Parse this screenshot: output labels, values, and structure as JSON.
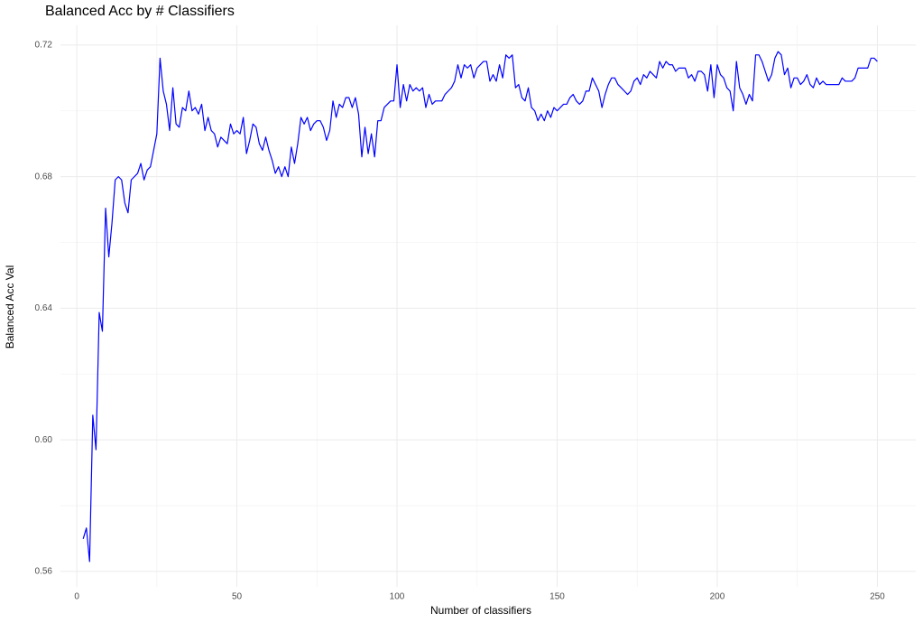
{
  "chart_data": {
    "type": "line",
    "title": "Balanced Acc by # Classifiers",
    "x_label": "Number of classifiers",
    "y_label": "Balanced Acc Val",
    "color": "#0000ff",
    "grid": true,
    "x": [
      2,
      3,
      4,
      5,
      6,
      7,
      8,
      9,
      10,
      11,
      12,
      13,
      14,
      15,
      16,
      17,
      18,
      19,
      20,
      21,
      22,
      23,
      24,
      25,
      26,
      27,
      28,
      29,
      30,
      31,
      32,
      33,
      34,
      35,
      36,
      37,
      38,
      39,
      40,
      41,
      42,
      43,
      44,
      45,
      46,
      47,
      48,
      49,
      50,
      51,
      52,
      53,
      54,
      55,
      56,
      57,
      58,
      59,
      60,
      61,
      62,
      63,
      64,
      65,
      66,
      67,
      68,
      69,
      70,
      71,
      72,
      73,
      74,
      75,
      76,
      77,
      78,
      79,
      80,
      81,
      82,
      83,
      84,
      85,
      86,
      87,
      88,
      89,
      90,
      91,
      92,
      93,
      94,
      95,
      96,
      97,
      98,
      99,
      100,
      101,
      102,
      103,
      104,
      105,
      106,
      107,
      108,
      109,
      110,
      111,
      112,
      113,
      114,
      115,
      116,
      117,
      118,
      119,
      120,
      121,
      122,
      123,
      124,
      125,
      126,
      127,
      128,
      129,
      130,
      131,
      132,
      133,
      134,
      135,
      136,
      137,
      138,
      139,
      140,
      141,
      142,
      143,
      144,
      145,
      146,
      147,
      148,
      149,
      150,
      151,
      152,
      153,
      154,
      155,
      156,
      157,
      158,
      159,
      160,
      161,
      162,
      163,
      164,
      165,
      166,
      167,
      168,
      169,
      170,
      171,
      172,
      173,
      174,
      175,
      176,
      177,
      178,
      179,
      180,
      181,
      182,
      183,
      184,
      185,
      186,
      187,
      188,
      189,
      190,
      191,
      192,
      193,
      194,
      195,
      196,
      197,
      198,
      199,
      200,
      201,
      202,
      203,
      204,
      205,
      206,
      207,
      208,
      209,
      210,
      211,
      212,
      213,
      214,
      215,
      216,
      217,
      218,
      219,
      220,
      221,
      222,
      223,
      224,
      225,
      226,
      227,
      228,
      229,
      230,
      231,
      232,
      233,
      234,
      235,
      236,
      237,
      238,
      239,
      240,
      241,
      242,
      243,
      244,
      245,
      246,
      247,
      248,
      249,
      250
    ],
    "values": [
      0.5699,
      0.5732,
      0.563,
      0.6075,
      0.597,
      0.6387,
      0.633,
      0.6704,
      0.6556,
      0.666,
      0.679,
      0.68,
      0.679,
      0.672,
      0.669,
      0.679,
      0.68,
      0.681,
      0.684,
      0.679,
      0.682,
      0.683,
      0.688,
      0.693,
      0.716,
      0.706,
      0.702,
      0.694,
      0.707,
      0.696,
      0.695,
      0.701,
      0.7,
      0.706,
      0.7,
      0.701,
      0.699,
      0.702,
      0.694,
      0.698,
      0.694,
      0.693,
      0.689,
      0.692,
      0.691,
      0.69,
      0.696,
      0.693,
      0.694,
      0.693,
      0.698,
      0.687,
      0.691,
      0.696,
      0.695,
      0.69,
      0.688,
      0.692,
      0.688,
      0.685,
      0.681,
      0.683,
      0.68,
      0.683,
      0.68,
      0.689,
      0.684,
      0.69,
      0.698,
      0.696,
      0.698,
      0.694,
      0.696,
      0.697,
      0.697,
      0.695,
      0.691,
      0.694,
      0.703,
      0.698,
      0.702,
      0.701,
      0.704,
      0.704,
      0.701,
      0.704,
      0.699,
      0.686,
      0.695,
      0.687,
      0.693,
      0.686,
      0.697,
      0.697,
      0.701,
      0.702,
      0.703,
      0.703,
      0.714,
      0.701,
      0.708,
      0.703,
      0.708,
      0.706,
      0.707,
      0.706,
      0.707,
      0.701,
      0.705,
      0.702,
      0.703,
      0.703,
      0.703,
      0.705,
      0.706,
      0.707,
      0.709,
      0.714,
      0.71,
      0.714,
      0.713,
      0.714,
      0.71,
      0.713,
      0.714,
      0.715,
      0.715,
      0.709,
      0.711,
      0.709,
      0.714,
      0.71,
      0.717,
      0.716,
      0.717,
      0.707,
      0.708,
      0.704,
      0.703,
      0.707,
      0.701,
      0.7,
      0.697,
      0.699,
      0.697,
      0.7,
      0.698,
      0.701,
      0.7,
      0.701,
      0.702,
      0.702,
      0.704,
      0.705,
      0.703,
      0.702,
      0.703,
      0.706,
      0.706,
      0.71,
      0.708,
      0.706,
      0.701,
      0.705,
      0.708,
      0.71,
      0.71,
      0.708,
      0.707,
      0.706,
      0.705,
      0.706,
      0.709,
      0.71,
      0.708,
      0.711,
      0.71,
      0.712,
      0.711,
      0.71,
      0.715,
      0.713,
      0.715,
      0.714,
      0.714,
      0.712,
      0.713,
      0.713,
      0.713,
      0.71,
      0.711,
      0.709,
      0.712,
      0.712,
      0.711,
      0.706,
      0.714,
      0.704,
      0.714,
      0.711,
      0.71,
      0.707,
      0.706,
      0.7,
      0.715,
      0.707,
      0.705,
      0.702,
      0.705,
      0.703,
      0.717,
      0.717,
      0.715,
      0.712,
      0.709,
      0.711,
      0.716,
      0.718,
      0.717,
      0.711,
      0.713,
      0.707,
      0.71,
      0.71,
      0.708,
      0.709,
      0.711,
      0.708,
      0.707,
      0.71,
      0.708,
      0.709,
      0.708,
      0.708,
      0.708,
      0.708,
      0.708,
      0.71,
      0.709,
      0.709,
      0.709,
      0.71,
      0.713,
      0.713,
      0.713,
      0.713,
      0.716,
      0.716,
      0.715
    ],
    "xlim": [
      -5.1,
      262
    ],
    "ylim": [
      0.5553,
      0.726
    ],
    "xticks": [
      0,
      50,
      100,
      150,
      200,
      250
    ],
    "yticks": [
      0.56,
      {
        "value": 0.6,
        "label": "0.60"
      },
      0.64,
      0.68,
      0.72
    ]
  }
}
